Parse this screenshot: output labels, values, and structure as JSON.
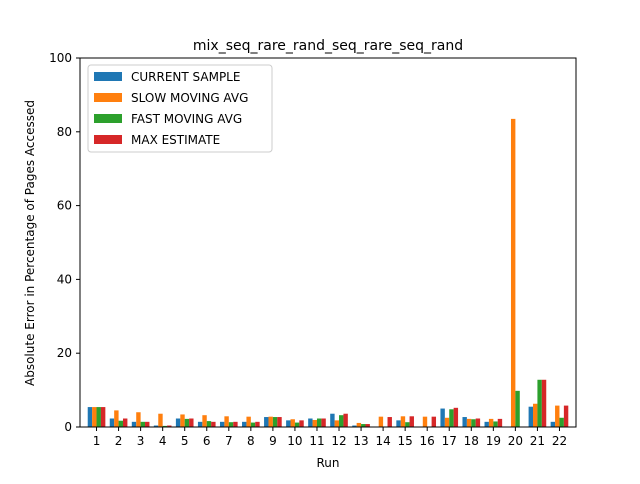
{
  "chart_data": {
    "type": "bar",
    "title": "mix_seq_rare_rand_seq_rare_seq_rand",
    "xlabel": "Run",
    "ylabel": "Absolute Error in Percentage of Pages Accessed",
    "categories": [
      "1",
      "2",
      "3",
      "4",
      "5",
      "6",
      "7",
      "8",
      "9",
      "10",
      "11",
      "12",
      "13",
      "14",
      "15",
      "16",
      "17",
      "18",
      "19",
      "20",
      "21",
      "22"
    ],
    "ylim": [
      0,
      100
    ],
    "yticks": [
      0,
      20,
      40,
      60,
      80,
      100
    ],
    "grid": false,
    "legend_position": "top-left",
    "series": [
      {
        "name": "CURRENT SAMPLE",
        "color": "#1f77b4",
        "values": [
          5.4,
          2.3,
          1.4,
          0.4,
          2.3,
          1.4,
          1.4,
          1.4,
          2.7,
          1.8,
          2.3,
          3.6,
          0.4,
          0.1,
          1.8,
          0.1,
          5.0,
          2.7,
          1.4,
          0.1,
          5.5,
          1.4
        ]
      },
      {
        "name": "SLOW MOVING AVG",
        "color": "#ff7f0e",
        "values": [
          5.4,
          4.5,
          4.0,
          3.6,
          3.4,
          3.2,
          2.9,
          2.8,
          2.8,
          2.1,
          1.9,
          1.8,
          1.1,
          2.8,
          2.9,
          2.8,
          2.5,
          2.2,
          2.2,
          83.5,
          6.3,
          5.8
        ]
      },
      {
        "name": "FAST MOVING AVG",
        "color": "#2ca02c",
        "values": [
          5.4,
          1.7,
          1.4,
          0.3,
          2.2,
          1.6,
          1.3,
          1.2,
          2.7,
          1.2,
          2.3,
          3.2,
          0.8,
          0.1,
          1.3,
          0.1,
          4.8,
          2.1,
          1.5,
          9.8,
          12.8,
          2.5
        ]
      },
      {
        "name": "MAX ESTIMATE",
        "color": "#d62728",
        "values": [
          5.4,
          2.3,
          1.4,
          0.4,
          2.3,
          1.4,
          1.4,
          1.4,
          2.7,
          1.8,
          2.3,
          3.6,
          0.8,
          2.7,
          2.9,
          2.8,
          5.2,
          2.3,
          2.2,
          0.1,
          12.8,
          5.8
        ]
      }
    ]
  }
}
